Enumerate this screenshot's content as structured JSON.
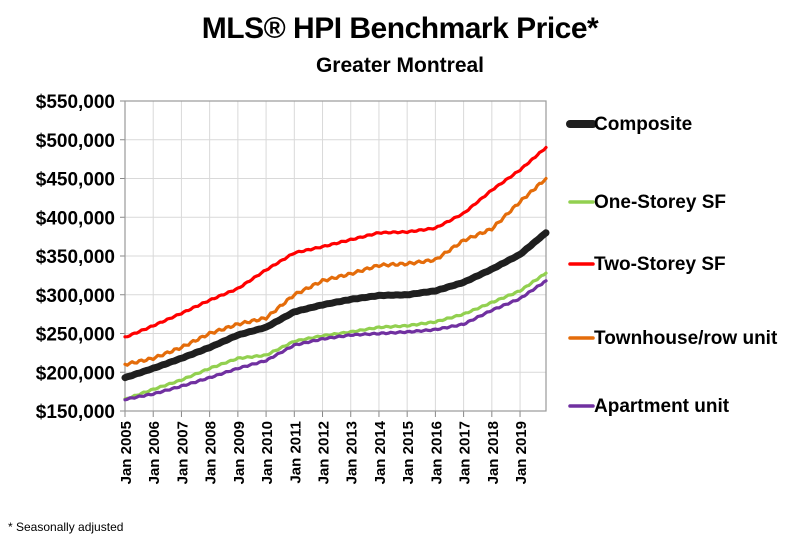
{
  "chart_data": {
    "type": "line",
    "title": "MLS® HPI Benchmark Price*",
    "subtitle": "Greater Montreal",
    "footnote": "* Seasonally adjusted",
    "xlabel": "",
    "ylabel": "",
    "ylim": [
      150000,
      550000
    ],
    "yticks": [
      150000,
      200000,
      250000,
      300000,
      350000,
      400000,
      450000,
      500000,
      550000
    ],
    "ytick_labels": [
      "$150,000",
      "$200,000",
      "$250,000",
      "$300,000",
      "$350,000",
      "$400,000",
      "$450,000",
      "$500,000",
      "$550,000"
    ],
    "xlim": [
      2005.0,
      2019.92
    ],
    "x": [
      2005,
      2006,
      2007,
      2008,
      2009,
      2010,
      2011,
      2012,
      2013,
      2014,
      2015,
      2016,
      2017,
      2018,
      2019,
      2019.92
    ],
    "xtick_values": [
      2005,
      2006,
      2007,
      2008,
      2009,
      2010,
      2011,
      2012,
      2013,
      2014,
      2015,
      2016,
      2017,
      2018,
      2019
    ],
    "xtick_labels": [
      "Jan 2005",
      "Jan 2006",
      "Jan 2007",
      "Jan 2008",
      "Jan 2009",
      "Jan 2010",
      "Jan 2011",
      "Jan 2012",
      "Jan 2013",
      "Jan 2014",
      "Jan 2015",
      "Jan 2016",
      "Jan 2017",
      "Jan 2018",
      "Jan 2019"
    ],
    "grid": true,
    "legend_position": "right",
    "series": [
      {
        "name": "Composite",
        "color": "#1f1f1f",
        "width": "thick",
        "values": [
          193000,
          205000,
          218000,
          232000,
          248000,
          258000,
          278000,
          287000,
          294000,
          299000,
          300000,
          305000,
          316000,
          333000,
          352000,
          380000
        ]
      },
      {
        "name": "One-Storey SF",
        "color": "#92d050",
        "width": "normal",
        "values": [
          165000,
          178000,
          190000,
          205000,
          218000,
          222000,
          240000,
          247000,
          252000,
          258000,
          260000,
          265000,
          275000,
          290000,
          305000,
          328000
        ]
      },
      {
        "name": "Two-Storey SF",
        "color": "#ff0000",
        "width": "normal",
        "values": [
          245000,
          260000,
          276000,
          293000,
          308000,
          332000,
          354000,
          362000,
          371000,
          380000,
          381000,
          386000,
          405000,
          435000,
          461000,
          490000
        ]
      },
      {
        "name": "Townhouse/row unit",
        "color": "#e46c0a",
        "width": "normal",
        "values": [
          210000,
          218000,
          232000,
          250000,
          262000,
          270000,
          300000,
          318000,
          327000,
          338000,
          340000,
          345000,
          370000,
          385000,
          420000,
          450000
        ]
      },
      {
        "name": "Apartment unit",
        "color": "#7030a0",
        "width": "normal",
        "values": [
          165000,
          172000,
          182000,
          193000,
          205000,
          215000,
          235000,
          243000,
          248000,
          250000,
          252000,
          255000,
          262000,
          280000,
          295000,
          318000
        ]
      }
    ]
  }
}
